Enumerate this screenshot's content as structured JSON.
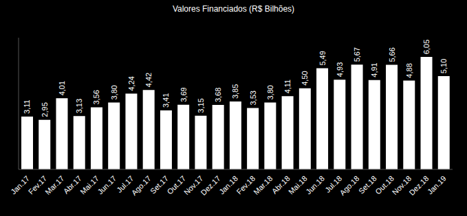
{
  "chart_data": {
    "type": "bar",
    "title": "Valores Financiados (R$ Bilhões)",
    "categories": [
      "Jan.17",
      "Fev.17",
      "Mar.17",
      "Abr.17",
      "Mai.17",
      "Jun.17",
      "Jul.17",
      "Ago.17",
      "Set.17",
      "Out.17",
      "Nov.17",
      "Dez.17",
      "Jan.18",
      "Fev.18",
      "Mar.18",
      "Abr.18",
      "Mai.18",
      "Jun.18",
      "Jul.18",
      "Ago.18",
      "Set.18",
      "Out.18",
      "Nov.18",
      "Dez.18",
      "Jan.19"
    ],
    "values": [
      3.11,
      2.95,
      4.01,
      3.13,
      3.56,
      3.8,
      4.24,
      4.42,
      3.41,
      3.69,
      3.15,
      3.68,
      3.85,
      3.53,
      3.8,
      4.11,
      4.5,
      5.49,
      4.93,
      5.67,
      4.91,
      5.66,
      4.88,
      6.05,
      5.1
    ],
    "value_labels": [
      "3,11",
      "2,95",
      "4,01",
      "3,13",
      "3,56",
      "3,80",
      "4,24",
      "4,42",
      "3,41",
      "3,69",
      "3,15",
      "3,68",
      "3,85",
      "3,53",
      "3,80",
      "4,11",
      "4,50",
      "5,49",
      "4,93",
      "5,67",
      "4,91",
      "5,66",
      "4,88",
      "6,05",
      "5,10"
    ],
    "color": "#ffffff",
    "ylim": [
      0.5,
      7
    ],
    "data_labels": true,
    "grid": false,
    "tick_labels": "x"
  }
}
